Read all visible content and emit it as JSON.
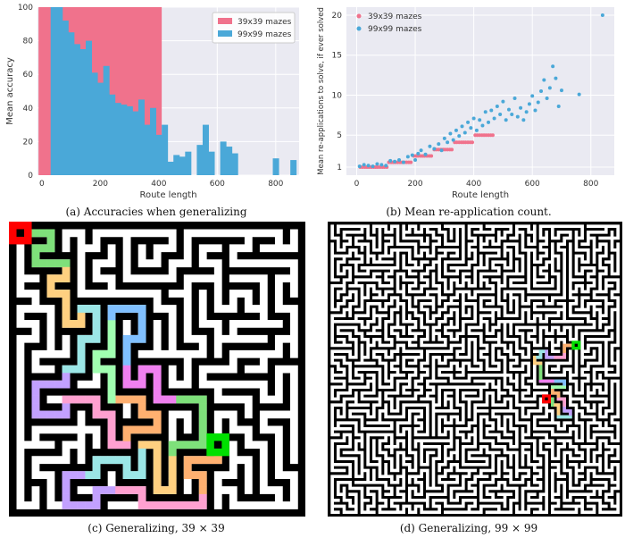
{
  "colors": {
    "mazes39": "#f0728c",
    "mazes99": "#4aa8d8",
    "plot_bg": "#eaeaf2",
    "grid": "#ffffff",
    "start": "#ff0000",
    "end": "#00e000",
    "path_palette": [
      "#7ee07a",
      "#ffd080",
      "#9be6e6",
      "#c2a0ff",
      "#ffa0d0",
      "#ffb070",
      "#a0ffb0",
      "#80c0ff",
      "#f080f0"
    ]
  },
  "captions": {
    "a": "(a) Accuracies when generalizing",
    "b": "(b) Mean re-application count.",
    "c": "(c) Generalizing, 39 × 39",
    "d": "(d) Generalizing, 99 × 99"
  },
  "chart_data": [
    {
      "type": "bar",
      "xlabel": "Route length",
      "ylabel": "Mean accuracy",
      "xticks": [
        "0",
        "200",
        "400",
        "600",
        "800"
      ],
      "yticks": [
        "0",
        "20",
        "40",
        "60",
        "80",
        "100"
      ],
      "xlim": [
        -15,
        880
      ],
      "ylim": [
        0,
        100
      ],
      "legend_position": "top-right",
      "series": [
        {
          "name": "39x39 mazes",
          "x": [
            10,
            30,
            50,
            70,
            90,
            110,
            130,
            150,
            170,
            190,
            210,
            230,
            250,
            270,
            290,
            310,
            330,
            350,
            370,
            390,
            410
          ],
          "values": [
            100,
            100,
            100,
            100,
            100,
            100,
            100,
            100,
            100,
            100,
            100,
            100,
            100,
            100,
            100,
            100,
            100,
            100,
            100,
            100,
            100
          ]
        },
        {
          "name": "99x99 mazes",
          "x": [
            10,
            30,
            50,
            70,
            90,
            110,
            130,
            150,
            170,
            190,
            210,
            230,
            250,
            270,
            290,
            310,
            330,
            350,
            370,
            390,
            410,
            430,
            450,
            470,
            490,
            510,
            530,
            550,
            570,
            590,
            610,
            630,
            650,
            670,
            690,
            790,
            850
          ],
          "values": [
            0,
            100,
            100,
            92,
            85,
            78,
            75,
            80,
            61,
            55,
            65,
            48,
            43,
            42,
            41,
            38,
            45,
            30,
            40,
            24,
            30,
            8,
            12,
            11,
            14,
            0,
            18,
            30,
            14,
            0,
            20,
            17,
            13,
            0,
            0,
            10,
            9
          ]
        }
      ]
    },
    {
      "type": "scatter",
      "xlabel": "Route length",
      "ylabel": "Mean re-applications to solve, if ever solved",
      "xticks": [
        "0",
        "200",
        "400",
        "600",
        "800"
      ],
      "yticks": [
        "1",
        "5",
        "10",
        "15",
        "20"
      ],
      "xlim": [
        -35,
        880
      ],
      "ylim": [
        0,
        21
      ],
      "legend_position": "top-left",
      "series": [
        {
          "name": "39x39 mazes",
          "points": [
            [
              12,
              1.0
            ],
            [
              20,
              1.0
            ],
            [
              28,
              1.0
            ],
            [
              35,
              1.0
            ],
            [
              42,
              1.0
            ],
            [
              50,
              1.0
            ],
            [
              58,
              1.0
            ],
            [
              65,
              1.0
            ],
            [
              72,
              1.0
            ],
            [
              80,
              1.0
            ],
            [
              88,
              1.0
            ],
            [
              95,
              1.0
            ],
            [
              103,
              1.0
            ],
            [
              110,
              1.6
            ],
            [
              118,
              1.6
            ],
            [
              125,
              1.6
            ],
            [
              132,
              1.6
            ],
            [
              140,
              1.6
            ],
            [
              148,
              1.6
            ],
            [
              155,
              1.6
            ],
            [
              162,
              1.6
            ],
            [
              170,
              1.6
            ],
            [
              178,
              1.6
            ],
            [
              185,
              1.6
            ],
            [
              195,
              2.4
            ],
            [
              203,
              2.4
            ],
            [
              210,
              2.4
            ],
            [
              218,
              2.4
            ],
            [
              225,
              2.4
            ],
            [
              232,
              2.4
            ],
            [
              240,
              2.4
            ],
            [
              248,
              2.4
            ],
            [
              255,
              2.4
            ],
            [
              265,
              3.2
            ],
            [
              272,
              3.2
            ],
            [
              280,
              3.2
            ],
            [
              288,
              3.2
            ],
            [
              295,
              3.2
            ],
            [
              302,
              3.2
            ],
            [
              310,
              3.2
            ],
            [
              318,
              3.2
            ],
            [
              325,
              3.2
            ],
            [
              335,
              4.1
            ],
            [
              342,
              4.1
            ],
            [
              350,
              4.1
            ],
            [
              358,
              4.1
            ],
            [
              365,
              4.1
            ],
            [
              372,
              4.1
            ],
            [
              380,
              4.1
            ],
            [
              388,
              4.1
            ],
            [
              395,
              4.1
            ],
            [
              405,
              5.0
            ],
            [
              412,
              5.0
            ],
            [
              420,
              5.0
            ],
            [
              428,
              5.0
            ],
            [
              435,
              5.0
            ],
            [
              442,
              5.0
            ],
            [
              450,
              5.0
            ],
            [
              458,
              5.0
            ],
            [
              465,
              5.0
            ]
          ]
        },
        {
          "name": "99x99 mazes",
          "points": [
            [
              10,
              1.1
            ],
            [
              25,
              1.3
            ],
            [
              40,
              1.2
            ],
            [
              55,
              1.1
            ],
            [
              70,
              1.4
            ],
            [
              85,
              1.3
            ],
            [
              100,
              1.2
            ],
            [
              115,
              1.8
            ],
            [
              130,
              1.7
            ],
            [
              145,
              1.9
            ],
            [
              160,
              1.6
            ],
            [
              175,
              2.3
            ],
            [
              190,
              2.5
            ],
            [
              200,
              1.9
            ],
            [
              210,
              2.7
            ],
            [
              220,
              3.1
            ],
            [
              235,
              2.6
            ],
            [
              250,
              3.6
            ],
            [
              265,
              3.3
            ],
            [
              280,
              3.9
            ],
            [
              290,
              3.1
            ],
            [
              300,
              4.6
            ],
            [
              310,
              4.1
            ],
            [
              320,
              5.2
            ],
            [
              330,
              4.4
            ],
            [
              340,
              5.6
            ],
            [
              350,
              4.9
            ],
            [
              360,
              6.1
            ],
            [
              370,
              5.3
            ],
            [
              380,
              6.6
            ],
            [
              390,
              5.9
            ],
            [
              400,
              7.1
            ],
            [
              410,
              5.6
            ],
            [
              420,
              6.9
            ],
            [
              430,
              6.2
            ],
            [
              440,
              7.9
            ],
            [
              450,
              6.6
            ],
            [
              460,
              8.1
            ],
            [
              470,
              7.1
            ],
            [
              480,
              8.6
            ],
            [
              490,
              7.6
            ],
            [
              500,
              9.2
            ],
            [
              510,
              6.9
            ],
            [
              520,
              8.2
            ],
            [
              530,
              7.6
            ],
            [
              540,
              9.6
            ],
            [
              550,
              7.3
            ],
            [
              560,
              8.4
            ],
            [
              570,
              6.9
            ],
            [
              580,
              7.9
            ],
            [
              590,
              8.9
            ],
            [
              600,
              9.9
            ],
            [
              610,
              8.1
            ],
            [
              620,
              9.1
            ],
            [
              630,
              10.5
            ],
            [
              640,
              11.9
            ],
            [
              650,
              9.6
            ],
            [
              660,
              10.9
            ],
            [
              670,
              13.6
            ],
            [
              680,
              12.1
            ],
            [
              690,
              8.6
            ],
            [
              700,
              10.6
            ],
            [
              760,
              10.1
            ],
            [
              840,
              20.0
            ]
          ]
        }
      ]
    }
  ]
}
